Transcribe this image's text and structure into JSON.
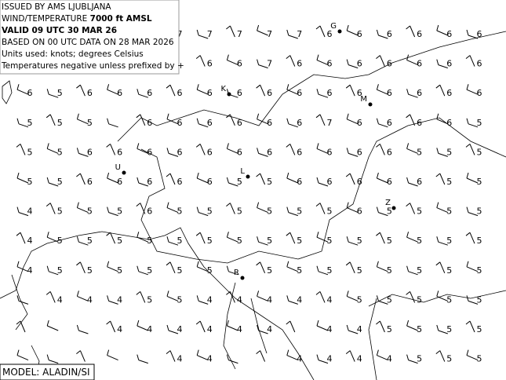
{
  "header": {
    "lines": [
      "ISSUED BY AMS LJUBLJANA",
      "WIND/TEMPERATURE",
      "7000 ft AMSL",
      "VALID 09 UTC 30 MAR 26",
      "BASED ON 00 UTC DATA ON 28 MAR 2026",
      "Units used: knots; degrees Celsius",
      "Temperatures negative unless prefixed by +"
    ]
  },
  "model": "MODEL: ALADIN/SI",
  "cities": [
    "G",
    "K",
    "M",
    "U",
    "L",
    "Z",
    "R"
  ],
  "temperatures": [
    [
      "",
      "",
      "",
      "",
      "",
      "7",
      "7",
      "7",
      "7",
      "7",
      "6",
      "6",
      "6",
      "6",
      "6",
      "6"
    ],
    [
      "",
      "",
      "",
      "",
      "",
      "",
      "6",
      "6",
      "7",
      "6",
      "6",
      "6",
      "6",
      "6",
      "6",
      "6"
    ],
    [
      "6",
      "5",
      "6",
      "6",
      "6",
      "6",
      "6",
      "6",
      "6",
      "6",
      "6",
      "6",
      "6",
      "6",
      "6",
      "6"
    ],
    [
      "5",
      "5",
      "5",
      "",
      "6",
      "6",
      "6",
      "6",
      "6",
      "6",
      "7",
      "6",
      "6",
      "6",
      "6",
      "5"
    ],
    [
      "5",
      "5",
      "6",
      "6",
      "6",
      "6",
      "6",
      "6",
      "6",
      "6",
      "6",
      "6",
      "6",
      "5",
      "5",
      "5"
    ],
    [
      "5",
      "5",
      "6",
      "6",
      "6",
      "6",
      "6",
      "5",
      "5",
      "6",
      "6",
      "6",
      "6",
      "6",
      "5",
      "5"
    ],
    [
      "4",
      "5",
      "5",
      "5",
      "6",
      "5",
      "5",
      "5",
      "5",
      "5",
      "5",
      "6",
      "5",
      "5",
      "5",
      "5"
    ],
    [
      "4",
      "5",
      "5",
      "5",
      "5",
      "5",
      "5",
      "5",
      "5",
      "5",
      "5",
      "5",
      "5",
      "5",
      "5",
      "5"
    ],
    [
      "4",
      "5",
      "5",
      "5",
      "5",
      "5",
      "5",
      "",
      "5",
      "5",
      "5",
      "5",
      "5",
      "5",
      "5",
      "5"
    ],
    [
      "",
      "4",
      "4",
      "4",
      "5",
      "5",
      "4",
      "4",
      "4",
      "4",
      "4",
      "5",
      "5",
      "5",
      "5",
      "5"
    ],
    [
      "",
      "",
      "",
      "4",
      "4",
      "4",
      "4",
      "4",
      "4",
      "",
      "4",
      "4",
      "5",
      "5",
      "5",
      "5"
    ],
    [
      "",
      "",
      "",
      "",
      "",
      "4",
      "4",
      "",
      "",
      "4",
      "4",
      "4",
      "4",
      "5",
      "5",
      "5"
    ]
  ]
}
